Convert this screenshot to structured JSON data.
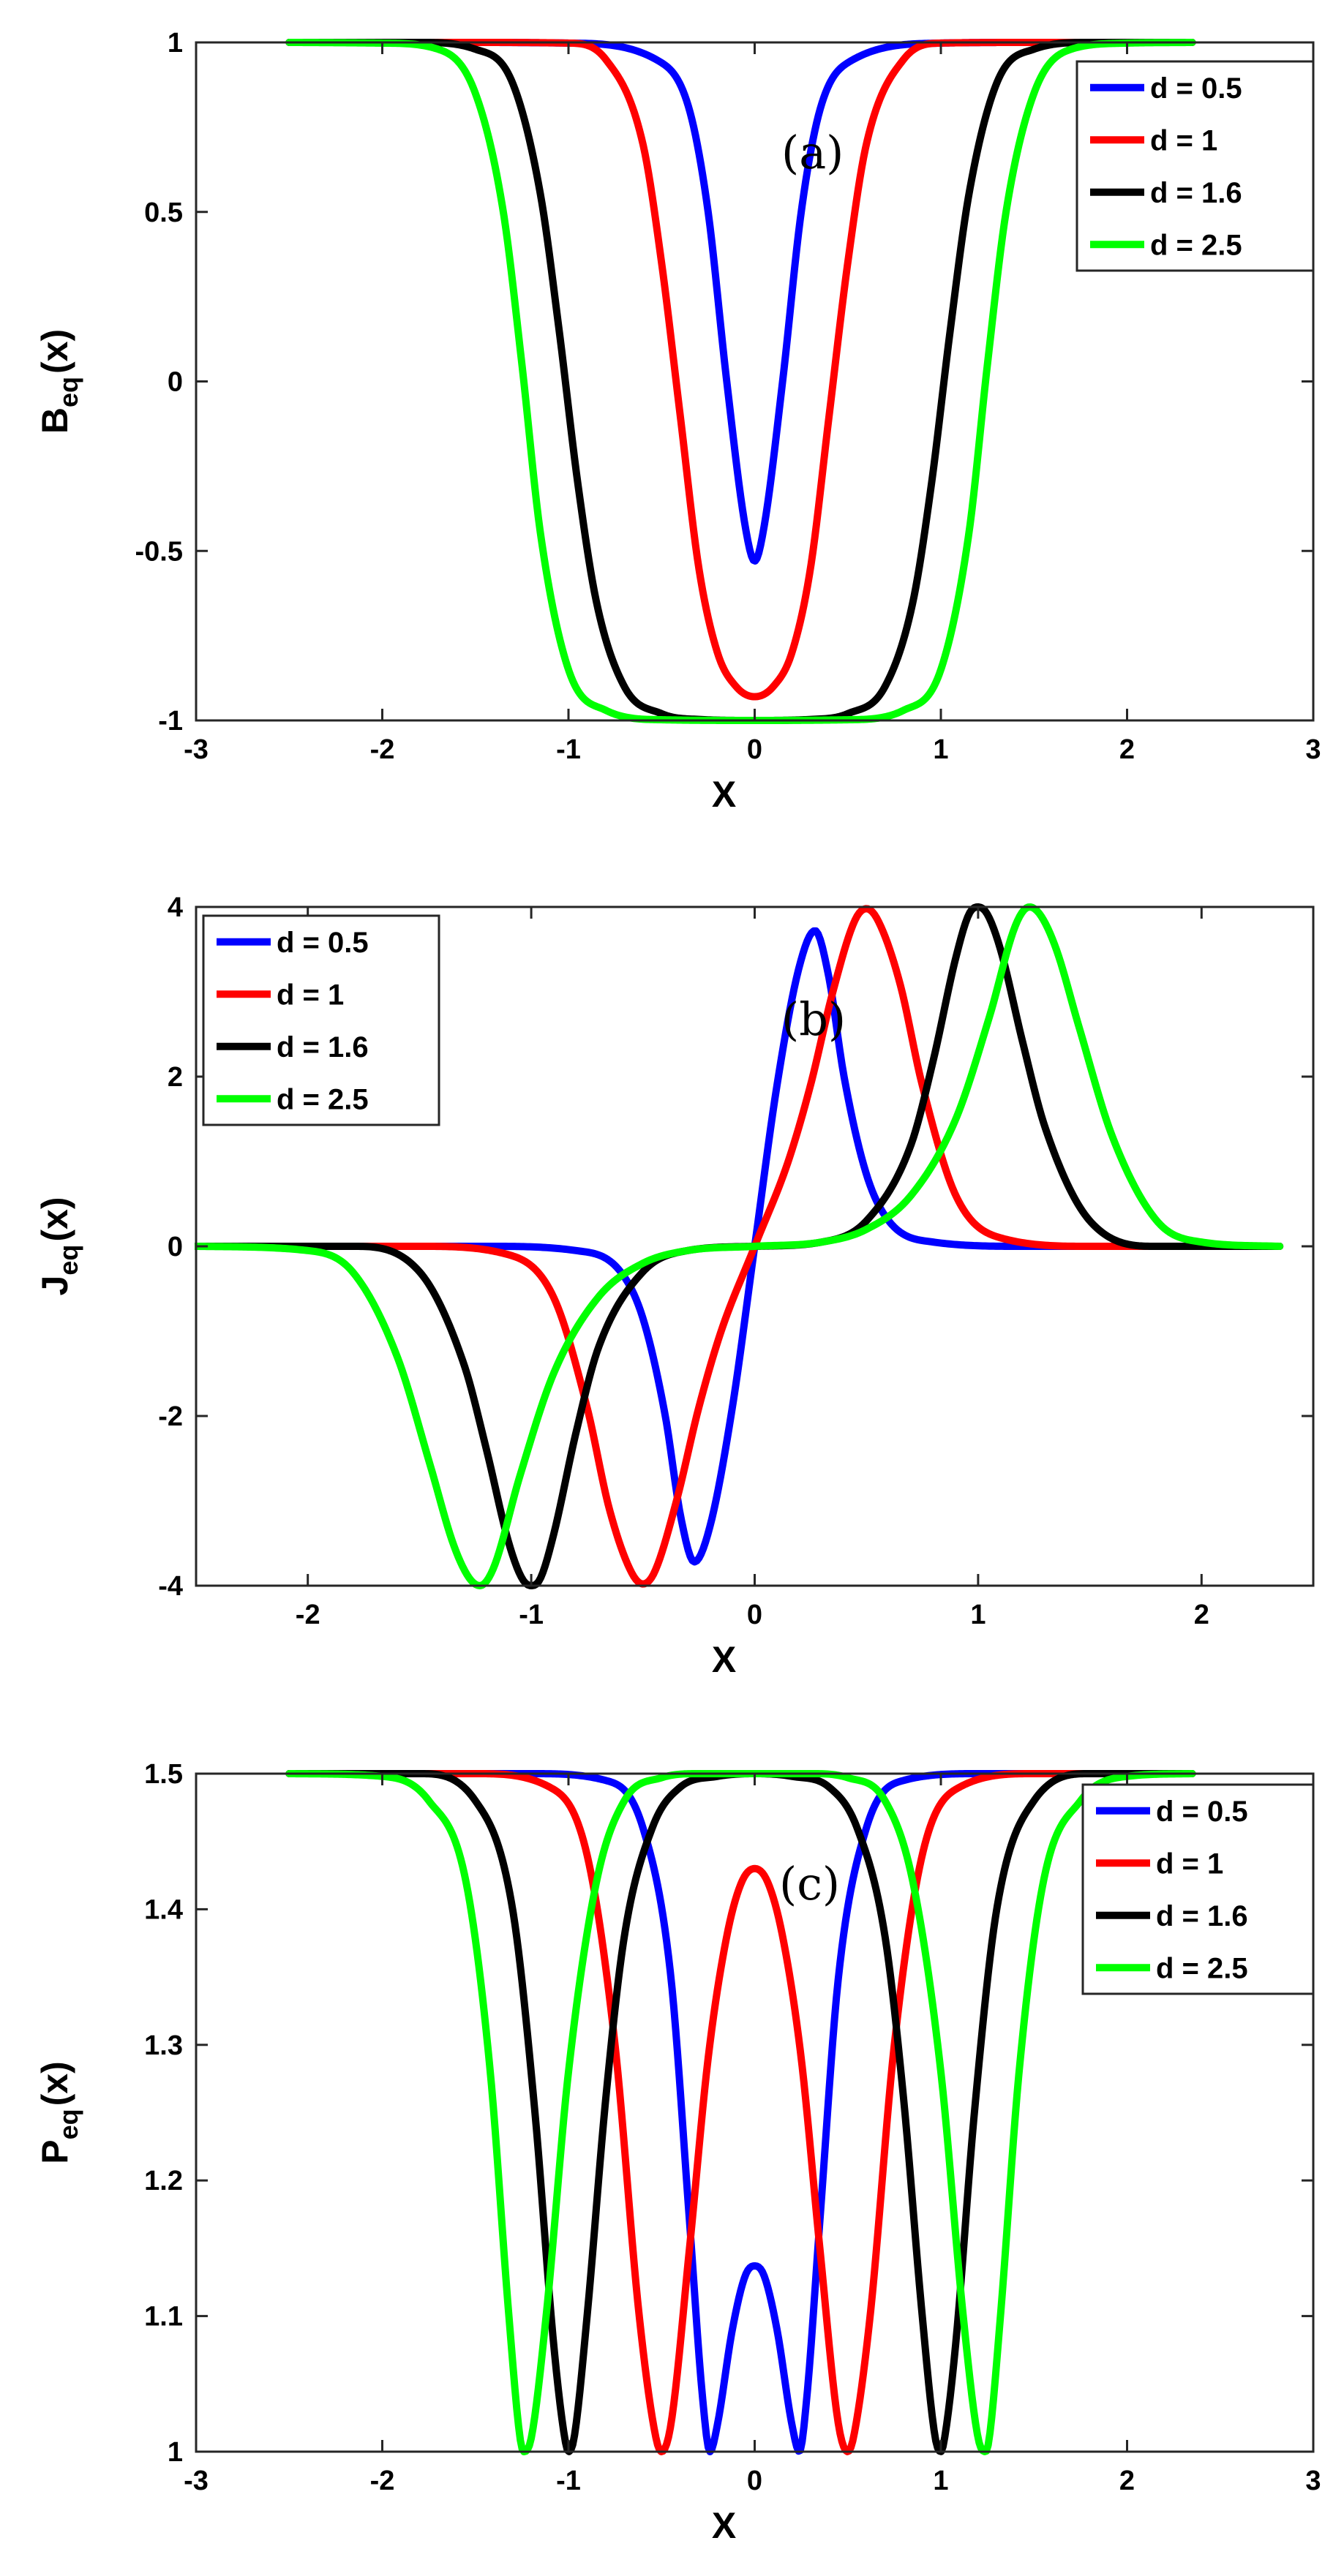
{
  "figure": {
    "series_names": [
      "d = 0.5",
      "d = 1",
      "d = 1.6",
      "d = 2.5"
    ],
    "series_colors": [
      "#0000ff",
      "#ff0000",
      "#000000",
      "#00ff00"
    ],
    "background": "#ffffff"
  },
  "chart_data": [
    {
      "type": "line",
      "panel_tag": "(a)",
      "xlabel": "X",
      "ylabel": {
        "base": "B",
        "sub": "eq",
        "suffix": "(x)"
      },
      "xlim": [
        -3,
        3
      ],
      "ylim": [
        -1,
        1
      ],
      "xticks": [
        -3,
        -2,
        -1,
        0,
        1,
        2,
        3
      ],
      "yticks": [
        -1,
        -0.5,
        0,
        0.5,
        1
      ],
      "xtick_labels": [
        "-3",
        "-2",
        "-1",
        "0",
        "1",
        "2",
        "3"
      ],
      "ytick_labels": [
        "-1",
        "-0.5",
        "0",
        "0.5",
        "1"
      ],
      "legend": "top-right",
      "grid": false,
      "series": [
        {
          "name": "d = 0.5",
          "color": "#0000ff",
          "x": [
            -2.5,
            -1.5,
            -1.0,
            -0.5,
            -0.35,
            -0.25,
            -0.15,
            -0.05,
            0,
            0.05,
            0.15,
            0.25,
            0.35,
            0.5,
            1.0,
            1.5,
            2.35
          ],
          "y": [
            1,
            1,
            0.998,
            0.94,
            0.8,
            0.5,
            0.0,
            -0.43,
            -0.53,
            -0.43,
            0.0,
            0.5,
            0.8,
            0.94,
            0.998,
            1,
            1
          ]
        },
        {
          "name": "d = 1",
          "color": "#ff0000",
          "x": [
            -2.5,
            -1.5,
            -1.0,
            -0.8,
            -0.6,
            -0.5,
            -0.4,
            -0.3,
            -0.2,
            -0.1,
            0,
            0.1,
            0.2,
            0.3,
            0.4,
            0.5,
            0.6,
            0.8,
            1.0,
            1.5,
            2.35
          ],
          "y": [
            1,
            1,
            0.998,
            0.95,
            0.7,
            0.35,
            -0.1,
            -0.55,
            -0.8,
            -0.9,
            -0.93,
            -0.9,
            -0.8,
            -0.55,
            -0.1,
            0.35,
            0.7,
            0.95,
            0.998,
            1,
            1
          ]
        },
        {
          "name": "d = 1.6",
          "color": "#000000",
          "x": [
            -2.5,
            -1.8,
            -1.5,
            -1.3,
            -1.15,
            -1.05,
            -0.95,
            -0.85,
            -0.7,
            -0.5,
            -0.3,
            0,
            0.3,
            0.5,
            0.7,
            0.85,
            0.95,
            1.05,
            1.15,
            1.3,
            1.5,
            1.8,
            2.35
          ],
          "y": [
            1,
            1,
            0.98,
            0.88,
            0.55,
            0.15,
            -0.3,
            -0.65,
            -0.9,
            -0.98,
            -0.997,
            -1,
            -0.997,
            -0.98,
            -0.9,
            -0.65,
            -0.3,
            0.15,
            0.55,
            0.88,
            0.98,
            1,
            1
          ]
        },
        {
          "name": "d = 2.5",
          "color": "#00ff00",
          "x": [
            -2.5,
            -2.0,
            -1.7,
            -1.5,
            -1.35,
            -1.25,
            -1.15,
            -1.0,
            -0.8,
            -0.5,
            0,
            0.5,
            0.8,
            1.0,
            1.15,
            1.25,
            1.35,
            1.5,
            1.7,
            2.0,
            2.35
          ],
          "y": [
            1,
            0.998,
            0.98,
            0.85,
            0.5,
            0.05,
            -0.45,
            -0.85,
            -0.97,
            -0.998,
            -1,
            -0.998,
            -0.97,
            -0.85,
            -0.45,
            0.05,
            0.5,
            0.85,
            0.98,
            0.998,
            1
          ]
        }
      ]
    },
    {
      "type": "line",
      "panel_tag": "(b)",
      "xlabel": "X",
      "ylabel": {
        "base": "J",
        "sub": "eq",
        "suffix": "(x)"
      },
      "xlim": [
        -2.5,
        2.5
      ],
      "ylim": [
        -4,
        4
      ],
      "xticks": [
        -2,
        -1,
        0,
        1,
        2
      ],
      "yticks": [
        -4,
        -2,
        0,
        2,
        4
      ],
      "xtick_labels": [
        "-2",
        "-1",
        "0",
        "1",
        "2"
      ],
      "ytick_labels": [
        "-4",
        "-2",
        "0",
        "2",
        "4"
      ],
      "legend": "top-left",
      "grid": false,
      "series": [
        {
          "name": "d = 0.5",
          "color": "#0000ff",
          "x": [
            -2.5,
            -1.2,
            -0.8,
            -0.6,
            -0.5,
            -0.4,
            -0.33,
            -0.27,
            -0.2,
            -0.1,
            0,
            0.1,
            0.2,
            0.27,
            0.33,
            0.4,
            0.5,
            0.6,
            0.8,
            1.2,
            2.35
          ],
          "y": [
            0,
            0,
            -0.05,
            -0.3,
            -0.85,
            -2.0,
            -3.2,
            -3.72,
            -3.3,
            -1.9,
            0,
            1.9,
            3.3,
            3.72,
            3.2,
            2.0,
            0.85,
            0.3,
            0.05,
            0,
            0
          ]
        },
        {
          "name": "d = 1",
          "color": "#ff0000",
          "x": [
            -2.5,
            -1.5,
            -1.1,
            -0.9,
            -0.75,
            -0.65,
            -0.55,
            -0.5,
            -0.45,
            -0.35,
            -0.25,
            -0.15,
            0,
            0.15,
            0.25,
            0.35,
            0.45,
            0.5,
            0.55,
            0.65,
            0.75,
            0.9,
            1.1,
            1.5,
            2.35
          ],
          "y": [
            0,
            0,
            -0.1,
            -0.6,
            -1.9,
            -3.1,
            -3.85,
            -3.98,
            -3.85,
            -3.0,
            -1.9,
            -1.0,
            0,
            1.0,
            1.9,
            3.0,
            3.85,
            3.98,
            3.85,
            3.1,
            1.9,
            0.6,
            0.1,
            0,
            0
          ]
        },
        {
          "name": "d = 1.6",
          "color": "#000000",
          "x": [
            -2.5,
            -1.8,
            -1.5,
            -1.3,
            -1.2,
            -1.1,
            -1.04,
            -1.0,
            -0.96,
            -0.9,
            -0.8,
            -0.7,
            -0.5,
            -0.3,
            0,
            0.3,
            0.5,
            0.7,
            0.8,
            0.9,
            0.96,
            1.0,
            1.04,
            1.1,
            1.2,
            1.3,
            1.5,
            1.8,
            2.35
          ],
          "y": [
            0,
            0,
            -0.3,
            -1.4,
            -2.4,
            -3.5,
            -3.92,
            -4.0,
            -3.92,
            -3.4,
            -2.2,
            -1.2,
            -0.3,
            -0.05,
            0,
            0.05,
            0.3,
            1.2,
            2.2,
            3.4,
            3.92,
            4.0,
            3.92,
            3.5,
            2.4,
            1.4,
            0.3,
            0,
            0
          ]
        },
        {
          "name": "d = 2.5",
          "color": "#00ff00",
          "x": [
            -2.5,
            -2.0,
            -1.8,
            -1.6,
            -1.45,
            -1.35,
            -1.28,
            -1.23,
            -1.17,
            -1.05,
            -0.9,
            -0.7,
            -0.5,
            -0.3,
            0,
            0.3,
            0.5,
            0.7,
            0.9,
            1.05,
            1.17,
            1.23,
            1.28,
            1.35,
            1.45,
            1.6,
            1.8,
            2.0,
            2.35
          ],
          "y": [
            0,
            -0.05,
            -0.3,
            -1.3,
            -2.6,
            -3.5,
            -3.9,
            -4.0,
            -3.8,
            -2.7,
            -1.5,
            -0.6,
            -0.2,
            -0.05,
            0,
            0.05,
            0.2,
            0.6,
            1.5,
            2.7,
            3.8,
            4.0,
            3.9,
            3.5,
            2.6,
            1.3,
            0.3,
            0.05,
            0
          ]
        }
      ]
    },
    {
      "type": "line",
      "panel_tag": "(c)",
      "xlabel": "X",
      "ylabel": {
        "base": "P",
        "sub": "eq",
        "suffix": "(x)"
      },
      "xlim": [
        -3,
        3
      ],
      "ylim": [
        1,
        1.5
      ],
      "xticks": [
        -3,
        -2,
        -1,
        0,
        1,
        2,
        3
      ],
      "yticks": [
        1,
        1.1,
        1.2,
        1.3,
        1.4,
        1.5
      ],
      "xtick_labels": [
        "-3",
        "-2",
        "-1",
        "0",
        "1",
        "2",
        "3"
      ],
      "ytick_labels": [
        "1",
        "1.1",
        "1.2",
        "1.3",
        "1.4",
        "1.5"
      ],
      "legend": "top-right",
      "grid": false,
      "series": [
        {
          "name": "d = 0.5",
          "color": "#0000ff",
          "x": [
            -2.5,
            -1.2,
            -0.8,
            -0.6,
            -0.45,
            -0.35,
            -0.28,
            -0.24,
            -0.2,
            -0.12,
            -0.05,
            0,
            0.05,
            0.12,
            0.2,
            0.24,
            0.28,
            0.35,
            0.45,
            0.6,
            0.8,
            1.2,
            2.35
          ],
          "y": [
            1.5,
            1.5,
            1.495,
            1.46,
            1.35,
            1.17,
            1.04,
            1.0,
            1.02,
            1.09,
            1.13,
            1.137,
            1.13,
            1.09,
            1.02,
            1.0,
            1.04,
            1.17,
            1.35,
            1.46,
            1.495,
            1.5,
            1.5
          ]
        },
        {
          "name": "d = 1",
          "color": "#ff0000",
          "x": [
            -2.5,
            -1.5,
            -1.1,
            -0.9,
            -0.75,
            -0.62,
            -0.53,
            -0.5,
            -0.45,
            -0.35,
            -0.25,
            -0.15,
            -0.07,
            0,
            0.07,
            0.15,
            0.25,
            0.35,
            0.45,
            0.5,
            0.53,
            0.62,
            0.75,
            0.9,
            1.1,
            1.5,
            2.35
          ],
          "y": [
            1.5,
            1.5,
            1.49,
            1.44,
            1.3,
            1.1,
            1.01,
            1.0,
            1.02,
            1.15,
            1.29,
            1.38,
            1.42,
            1.43,
            1.42,
            1.38,
            1.29,
            1.15,
            1.02,
            1.0,
            1.01,
            1.1,
            1.3,
            1.44,
            1.49,
            1.5,
            1.5
          ]
        },
        {
          "name": "d = 1.6",
          "color": "#000000",
          "x": [
            -2.5,
            -1.8,
            -1.5,
            -1.3,
            -1.18,
            -1.08,
            -1.02,
            -1.0,
            -0.97,
            -0.9,
            -0.8,
            -0.7,
            -0.55,
            -0.4,
            -0.2,
            0,
            0.2,
            0.4,
            0.55,
            0.7,
            0.8,
            0.9,
            0.97,
            1.0,
            1.02,
            1.08,
            1.18,
            1.3,
            1.5,
            1.8,
            2.35
          ],
          "y": [
            1.5,
            1.5,
            1.48,
            1.4,
            1.25,
            1.08,
            1.01,
            1.0,
            1.01,
            1.1,
            1.26,
            1.38,
            1.46,
            1.49,
            1.498,
            1.5,
            1.498,
            1.49,
            1.46,
            1.38,
            1.26,
            1.1,
            1.01,
            1.0,
            1.01,
            1.08,
            1.25,
            1.4,
            1.48,
            1.5,
            1.5
          ]
        },
        {
          "name": "d = 2.5",
          "color": "#00ff00",
          "x": [
            -2.5,
            -2.0,
            -1.75,
            -1.55,
            -1.42,
            -1.32,
            -1.26,
            -1.24,
            -1.2,
            -1.12,
            -1.0,
            -0.85,
            -0.7,
            -0.5,
            -0.3,
            0,
            0.3,
            0.5,
            0.7,
            0.85,
            1.0,
            1.12,
            1.2,
            1.24,
            1.26,
            1.32,
            1.42,
            1.55,
            1.75,
            2.0,
            2.35
          ],
          "y": [
            1.5,
            1.498,
            1.48,
            1.42,
            1.28,
            1.1,
            1.01,
            1.0,
            1.01,
            1.1,
            1.28,
            1.42,
            1.48,
            1.497,
            1.5,
            1.5,
            1.5,
            1.497,
            1.48,
            1.42,
            1.28,
            1.1,
            1.01,
            1.0,
            1.01,
            1.1,
            1.28,
            1.42,
            1.48,
            1.498,
            1.5
          ]
        }
      ]
    }
  ]
}
